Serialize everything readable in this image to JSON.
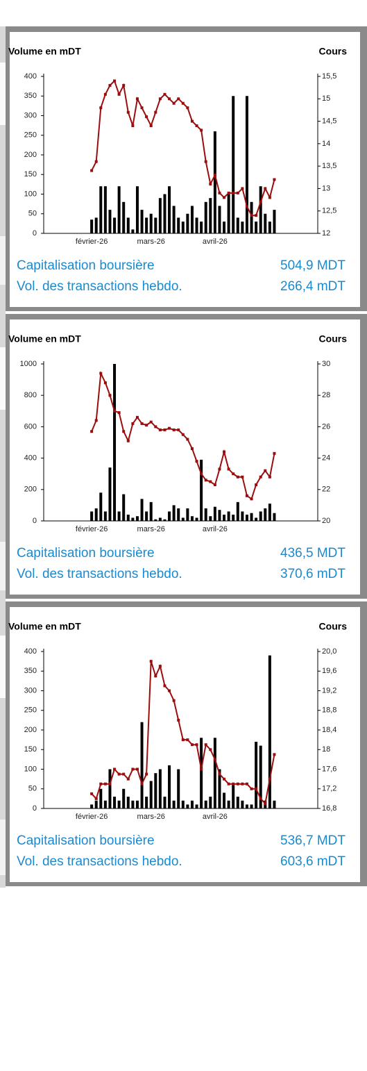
{
  "chart_data": [
    {
      "type": "combo",
      "ylabel": "Volume en mDT",
      "y2label": "Cours",
      "categories": [
        null,
        null,
        null,
        null,
        null,
        null,
        null,
        null,
        null,
        null,
        "février-26",
        null,
        null,
        null,
        null,
        null,
        null,
        null,
        null,
        null,
        null,
        null,
        null,
        "mars-26",
        null,
        null,
        null,
        null,
        null,
        null,
        null,
        null,
        null,
        null,
        null,
        null,
        null,
        "avril-26",
        null,
        null,
        null,
        null,
        null,
        null,
        null,
        null,
        null,
        null,
        null,
        null,
        null,
        null,
        null,
        null,
        null,
        null,
        null,
        null,
        null,
        null
      ],
      "ylim": [
        0,
        400
      ],
      "yticks": [
        0,
        50,
        100,
        150,
        200,
        250,
        300,
        350,
        400
      ],
      "y2lim": [
        12,
        15.5
      ],
      "y2ticks": [
        12,
        {
          "value": 12.5,
          "label": "12,5"
        },
        13,
        {
          "value": 13.5,
          "label": "13,5"
        },
        14,
        {
          "value": 14.5,
          "label": "14,5"
        },
        15,
        {
          "value": 15.5,
          "label": "15,5"
        }
      ],
      "series": [
        {
          "type": "bar",
          "color": "#000000",
          "values": [
            null,
            null,
            null,
            null,
            null,
            null,
            null,
            null,
            null,
            null,
            35,
            40,
            120,
            120,
            60,
            40,
            120,
            80,
            40,
            10,
            120,
            60,
            40,
            50,
            40,
            90,
            100,
            120,
            70,
            40,
            30,
            50,
            70,
            40,
            30,
            80,
            90,
            260,
            70,
            30,
            100,
            350,
            40,
            30,
            350,
            80,
            30,
            120,
            50,
            30,
            60,
            null,
            null,
            null,
            null,
            null,
            null,
            null,
            null,
            null
          ]
        },
        {
          "type": "line",
          "axis": "y2",
          "color": "#9b0d0d",
          "values": [
            null,
            null,
            null,
            null,
            null,
            null,
            null,
            null,
            null,
            null,
            13.4,
            13.6,
            14.8,
            15.1,
            15.3,
            15.4,
            15.1,
            15.3,
            14.7,
            14.4,
            15.0,
            14.8,
            14.6,
            14.4,
            14.7,
            15.0,
            15.1,
            15.0,
            14.9,
            15.0,
            14.9,
            14.8,
            14.5,
            14.4,
            14.3,
            13.6,
            13.1,
            13.3,
            12.9,
            12.8,
            12.9,
            12.9,
            12.9,
            13.0,
            12.6,
            12.4,
            12.4,
            12.7,
            13.0,
            12.8,
            13.2,
            null,
            null,
            null,
            null,
            null,
            null,
            null,
            null,
            null
          ]
        }
      ]
    },
    {
      "type": "combo",
      "ylabel": "Volume en mDT",
      "y2label": "Cours",
      "categories": [
        null,
        null,
        null,
        null,
        null,
        null,
        null,
        null,
        null,
        null,
        "février-26",
        null,
        null,
        null,
        null,
        null,
        null,
        null,
        null,
        null,
        null,
        null,
        null,
        "mars-26",
        null,
        null,
        null,
        null,
        null,
        null,
        null,
        null,
        null,
        null,
        null,
        null,
        null,
        "avril-26",
        null,
        null,
        null,
        null,
        null,
        null,
        null,
        null,
        null,
        null,
        null,
        null,
        null,
        null,
        null,
        null,
        null,
        null,
        null,
        null,
        null,
        null
      ],
      "ylim": [
        0,
        1000
      ],
      "yticks": [
        0,
        200,
        400,
        600,
        800,
        1000
      ],
      "y2lim": [
        20,
        30
      ],
      "y2ticks": [
        20,
        22,
        24,
        26,
        28,
        30
      ],
      "series": [
        {
          "type": "bar",
          "color": "#000000",
          "values": [
            null,
            null,
            null,
            null,
            null,
            null,
            null,
            null,
            null,
            null,
            60,
            80,
            180,
            60,
            340,
            1000,
            60,
            170,
            40,
            20,
            30,
            140,
            60,
            120,
            10,
            20,
            10,
            60,
            100,
            80,
            20,
            80,
            30,
            20,
            390,
            80,
            30,
            90,
            70,
            40,
            60,
            40,
            120,
            60,
            40,
            50,
            20,
            60,
            80,
            110,
            50,
            null,
            null,
            null,
            null,
            null,
            null,
            null,
            null,
            null
          ]
        },
        {
          "type": "line",
          "axis": "y2",
          "color": "#9b0d0d",
          "values": [
            null,
            null,
            null,
            null,
            null,
            null,
            null,
            null,
            null,
            null,
            25.7,
            26.4,
            29.4,
            28.8,
            28.0,
            27.0,
            26.9,
            25.7,
            25.1,
            26.2,
            26.6,
            26.2,
            26.1,
            26.3,
            26.0,
            25.8,
            25.8,
            25.9,
            25.8,
            25.8,
            25.5,
            25.2,
            24.6,
            23.8,
            23.0,
            22.6,
            22.5,
            22.3,
            23.3,
            24.4,
            23.3,
            23.0,
            22.8,
            22.8,
            21.6,
            21.4,
            22.3,
            22.8,
            23.2,
            22.8,
            24.3,
            null,
            null,
            null,
            null,
            null,
            null,
            null,
            null,
            null
          ]
        }
      ]
    },
    {
      "type": "combo",
      "ylabel": "Volume en mDT",
      "y2label": "Cours",
      "categories": [
        null,
        null,
        null,
        null,
        null,
        null,
        null,
        null,
        null,
        null,
        "février-26",
        null,
        null,
        null,
        null,
        null,
        null,
        null,
        null,
        null,
        null,
        null,
        null,
        "mars-26",
        null,
        null,
        null,
        null,
        null,
        null,
        null,
        null,
        null,
        null,
        null,
        null,
        null,
        "avril-26",
        null,
        null,
        null,
        null,
        null,
        null,
        null,
        null,
        null,
        null,
        null,
        null,
        null,
        null,
        null,
        null,
        null,
        null,
        null,
        null,
        null,
        null
      ],
      "ylim": [
        0,
        400
      ],
      "yticks": [
        0,
        50,
        100,
        150,
        200,
        250,
        300,
        350,
        400
      ],
      "y2lim": [
        16.8,
        20
      ],
      "y2ticks": [
        {
          "value": 16.8,
          "label": "16,8"
        },
        {
          "value": 17.2,
          "label": "17,2"
        },
        {
          "value": 17.6,
          "label": "17,6"
        },
        18,
        {
          "value": 18.4,
          "label": "18,4"
        },
        {
          "value": 18.8,
          "label": "18,8"
        },
        {
          "value": 19.2,
          "label": "19,2"
        },
        {
          "value": 19.6,
          "label": "19,6"
        },
        {
          "value": 20,
          "label": "20,0"
        }
      ],
      "series": [
        {
          "type": "bar",
          "color": "#000000",
          "values": [
            null,
            null,
            null,
            null,
            null,
            null,
            null,
            null,
            null,
            null,
            10,
            20,
            50,
            20,
            100,
            30,
            20,
            50,
            30,
            20,
            20,
            220,
            30,
            70,
            90,
            100,
            30,
            110,
            20,
            100,
            20,
            10,
            20,
            10,
            180,
            20,
            30,
            180,
            100,
            40,
            20,
            60,
            30,
            20,
            10,
            10,
            170,
            160,
            20,
            390,
            20,
            null,
            null,
            null,
            null,
            null,
            null,
            null,
            null,
            null
          ]
        },
        {
          "type": "line",
          "axis": "y2",
          "color": "#9b0d0d",
          "values": [
            null,
            null,
            null,
            null,
            null,
            null,
            null,
            null,
            null,
            null,
            17.1,
            17.0,
            17.3,
            17.3,
            17.3,
            17.6,
            17.5,
            17.5,
            17.4,
            17.6,
            17.6,
            17.3,
            17.5,
            19.8,
            19.5,
            19.7,
            19.3,
            19.2,
            19.0,
            18.6,
            18.2,
            18.2,
            18.1,
            18.1,
            17.6,
            18.1,
            18.0,
            17.8,
            17.5,
            17.4,
            17.3,
            17.3,
            17.3,
            17.3,
            17.3,
            17.2,
            17.2,
            17.0,
            16.9,
            17.4,
            17.9,
            null,
            null,
            null,
            null,
            null,
            null,
            null,
            null,
            null
          ]
        }
      ]
    }
  ],
  "panels": [
    {
      "rows": [
        [
          "Capitalisation boursière",
          "504,9 MDT"
        ],
        [
          "Vol. des transactions hebdo.",
          "266,4 mDT"
        ]
      ]
    },
    {
      "rows": [
        [
          "Capitalisation boursière",
          "436,5 MDT"
        ],
        [
          "Vol. des transactions hebdo.",
          "370,6 mDT"
        ]
      ]
    },
    {
      "rows": [
        [
          "Capitalisation boursière",
          "536,7 MDT"
        ],
        [
          "Vol. des transactions hebdo.",
          "603,6 mDT"
        ]
      ]
    }
  ]
}
